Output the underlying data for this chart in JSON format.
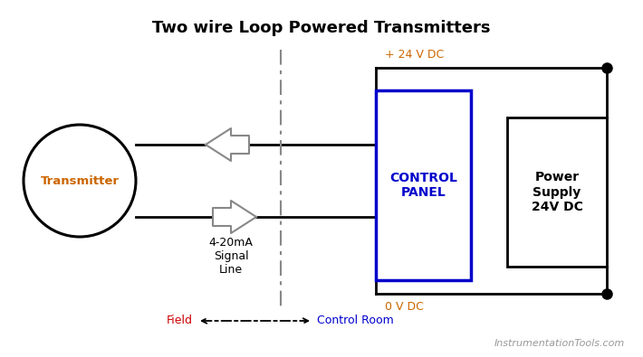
{
  "title": "Two wire Loop Powered Transmitters",
  "title_fontsize": 13,
  "title_fontweight": "bold",
  "bg_color": "#ffffff",
  "transmitter_label": "Transmitter",
  "transmitter_label_color": "#cc6600",
  "control_panel_label": "CONTROL\nPANEL",
  "control_panel_color": "#0000cc",
  "power_supply_label": "Power\nSupply\n24V DC",
  "power_supply_border": "#000000",
  "plus24_label": "+ 24 V DC",
  "plus24_color": "#cc6600",
  "zero_label": "0 V DC",
  "zero_color": "#cc6600",
  "signal_label": "4-20mA\nSignal\nLine",
  "signal_label_color": "#000000",
  "field_label": "Field",
  "field_label_color": "#cc0000",
  "control_room_label": "Control Room",
  "control_room_color": "#0000cc",
  "watermark": "InstrumentationTools.com",
  "watermark_color": "#999999",
  "line_color": "#000000",
  "arrow_outline_color": "#888888",
  "dashed_line_color": "#888888"
}
